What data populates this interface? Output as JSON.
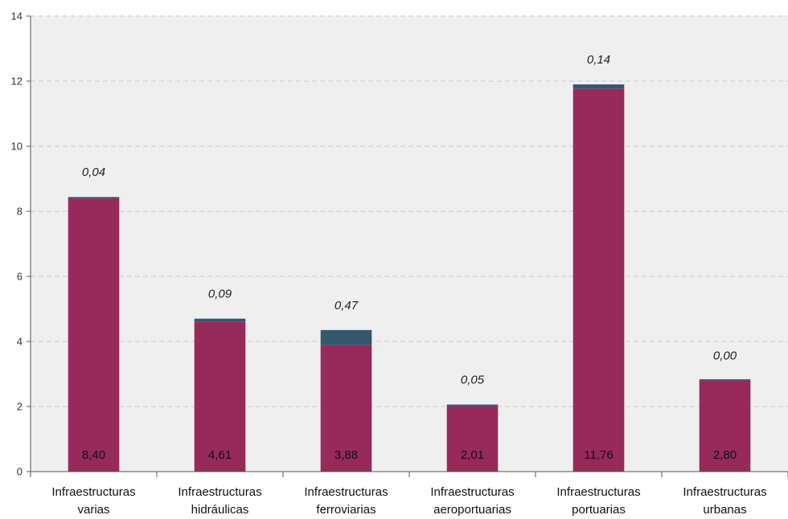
{
  "chart_data": {
    "type": "bar",
    "stacked": true,
    "categories": [
      [
        "Infraestructuras",
        "varias"
      ],
      [
        "Infraestructuras",
        "hidráulicas"
      ],
      [
        "Infraestructuras",
        "ferroviarias"
      ],
      [
        "Infraestructuras",
        "aeroportuarias"
      ],
      [
        "Infraestructuras",
        "portuarias"
      ],
      [
        "Infraestructuras",
        "urbanas"
      ]
    ],
    "series": [
      {
        "values": [
          8.4,
          4.61,
          3.88,
          2.01,
          11.76,
          2.8
        ],
        "labels": [
          "8,40",
          "4,61",
          "3,88",
          "2,01",
          "11,76",
          "2,80"
        ],
        "color": "#962A5B"
      },
      {
        "values": [
          0.04,
          0.09,
          0.47,
          0.05,
          0.14,
          0.0
        ],
        "labels": [
          "0,04",
          "0,09",
          "0,47",
          "0,05",
          "0,14",
          "0,00"
        ],
        "color": "#34586E"
      }
    ],
    "ylim": [
      0,
      14
    ],
    "yticks": [
      0,
      2,
      4,
      6,
      8,
      10,
      12,
      14
    ],
    "grid": true,
    "plot_background": "#EFEFF0",
    "xlabel": "",
    "ylabel": "",
    "title": ""
  }
}
